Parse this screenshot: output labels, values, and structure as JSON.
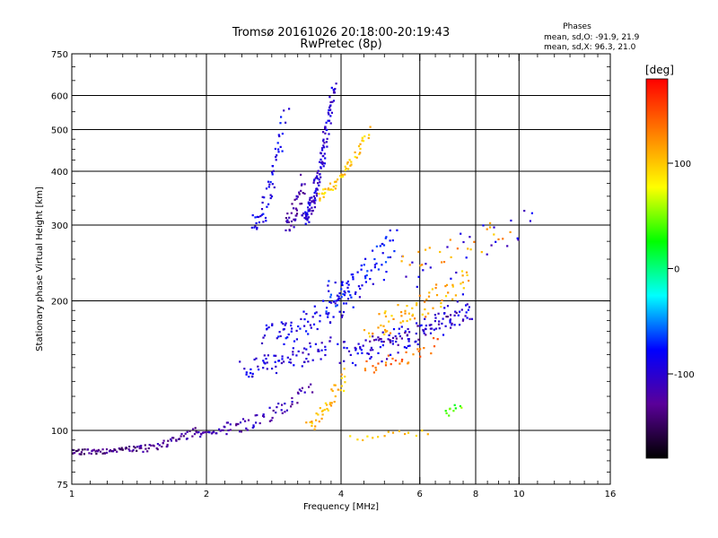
{
  "chart_data": {
    "type": "scatter",
    "title": "Tromsø 20161026 20:18:00-20:19:43",
    "subtitle": "RwPretec (8p)",
    "xlabel": "Frequency [MHz]",
    "ylabel": "Stationary phase Virtual Height [km]",
    "x_scale": "log",
    "y_scale": "log",
    "xlim": [
      1,
      16
    ],
    "ylim": [
      75,
      750
    ],
    "x_ticks": [
      1,
      2,
      4,
      6,
      8,
      10,
      16
    ],
    "x_ticklabels": [
      "1",
      "2",
      "4",
      "6",
      "8",
      "10",
      "16"
    ],
    "y_ticks": [
      75,
      100,
      200,
      300,
      400,
      500,
      600,
      750
    ],
    "y_ticklabels": [
      "75",
      "100",
      "200",
      "300",
      "400",
      "500",
      "600",
      "750"
    ],
    "grid": true,
    "info": {
      "heading": "Phases",
      "line1": "mean, sd,O: -91.9, 21.9",
      "line2": "mean, sd,X:  96.3, 21.0"
    },
    "colorbar": {
      "unit_label": "[deg]",
      "ticks": [
        100,
        0,
        -100
      ],
      "tick_labels": [
        "100",
        "0",
        "-100"
      ],
      "range": [
        -180,
        180
      ],
      "colors": [
        "#000000",
        "#5a0099",
        "#0000ff",
        "#00ffff",
        "#00ff00",
        "#ffff00",
        "#ff7f00",
        "#ff0000"
      ]
    },
    "series": [
      {
        "name": "O",
        "phase_mean": -91.9,
        "phase_sd": 21.9,
        "traces": [
          {
            "x0": 1.0,
            "x1": 1.42,
            "y0": 89,
            "y1": 91,
            "n": 60,
            "c": -135,
            "j": 0.02
          },
          {
            "x0": 1.42,
            "x1": 1.9,
            "y0": 91,
            "y1": 100,
            "n": 45,
            "c": -125,
            "j": 0.03
          },
          {
            "x0": 1.9,
            "x1": 2.2,
            "y0": 98,
            "y1": 101,
            "n": 22,
            "c": -110,
            "j": 0.02
          },
          {
            "x0": 2.2,
            "x1": 3.4,
            "y0": 101,
            "y1": 125,
            "n": 55,
            "c": -115,
            "j": 0.05
          },
          {
            "x0": 2.4,
            "x1": 3.8,
            "y0": 140,
            "y1": 158,
            "n": 70,
            "c": -95,
            "j": 0.08
          },
          {
            "x0": 2.7,
            "x1": 4.3,
            "y0": 165,
            "y1": 210,
            "n": 80,
            "c": -90,
            "j": 0.1
          },
          {
            "x0": 3.7,
            "x1": 5.2,
            "y0": 205,
            "y1": 285,
            "n": 70,
            "c": -80,
            "j": 0.12
          },
          {
            "x0": 4.0,
            "x1": 7.8,
            "y0": 150,
            "y1": 195,
            "n": 110,
            "c": -95,
            "j": 0.1
          },
          {
            "x0": 4.6,
            "x1": 7.8,
            "y0": 160,
            "y1": 190,
            "n": 40,
            "c": -120,
            "j": 0.06
          },
          {
            "x0": 2.55,
            "x1": 3.0,
            "y0": 300,
            "y1": 540,
            "n": 55,
            "c": -90,
            "j": 0.07
          },
          {
            "x0": 3.0,
            "x1": 3.3,
            "y0": 300,
            "y1": 380,
            "n": 40,
            "c": -120,
            "j": 0.06
          },
          {
            "x0": 3.3,
            "x1": 3.85,
            "y0": 310,
            "y1": 640,
            "n": 130,
            "c": -100,
            "j": 0.05
          },
          {
            "x0": 5.0,
            "x1": 11.0,
            "y0": 230,
            "y1": 320,
            "n": 30,
            "c": -95,
            "j": 0.15
          }
        ]
      },
      {
        "name": "X",
        "phase_mean": 96.3,
        "phase_sd": 21.0,
        "traces": [
          {
            "x0": 3.55,
            "x1": 4.6,
            "y0": 350,
            "y1": 500,
            "n": 55,
            "c": 100,
            "j": 0.04
          },
          {
            "x0": 3.4,
            "x1": 4.1,
            "y0": 104,
            "y1": 135,
            "n": 40,
            "c": 105,
            "j": 0.06
          },
          {
            "x0": 4.2,
            "x1": 6.2,
            "y0": 96,
            "y1": 100,
            "n": 15,
            "c": 100,
            "j": 0.03
          },
          {
            "x0": 4.6,
            "x1": 7.6,
            "y0": 175,
            "y1": 230,
            "n": 70,
            "c": 110,
            "j": 0.1
          },
          {
            "x0": 4.5,
            "x1": 6.5,
            "y0": 140,
            "y1": 160,
            "n": 30,
            "c": 135,
            "j": 0.06
          },
          {
            "x0": 5.5,
            "x1": 9.5,
            "y0": 250,
            "y1": 300,
            "n": 25,
            "c": 115,
            "j": 0.1
          },
          {
            "x0": 6.8,
            "x1": 7.4,
            "y0": 110,
            "y1": 115,
            "n": 10,
            "c": 40,
            "j": 0.03
          }
        ]
      }
    ]
  }
}
